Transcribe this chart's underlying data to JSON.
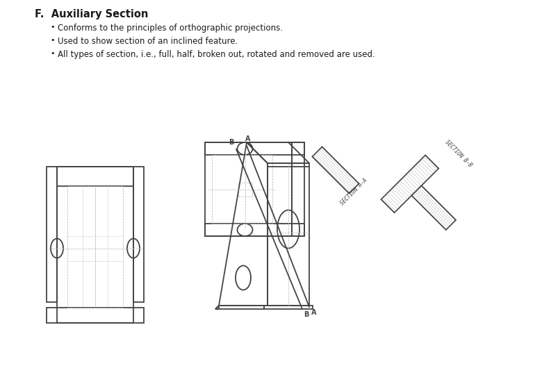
{
  "title": "F.  Auxiliary Section",
  "bullets": [
    "Conforms to the principles of orthographic projections.",
    "Used to show section of an inclined feature.",
    "All types of section, i.e., full, half, broken out, rotated and removed are used."
  ],
  "bg_color": "#ffffff",
  "text_color": "#1a1a1a",
  "drawing_color": "#444444",
  "light_color": "#bbbbbb",
  "fig_w": 7.8,
  "fig_h": 5.4,
  "dpi": 100
}
